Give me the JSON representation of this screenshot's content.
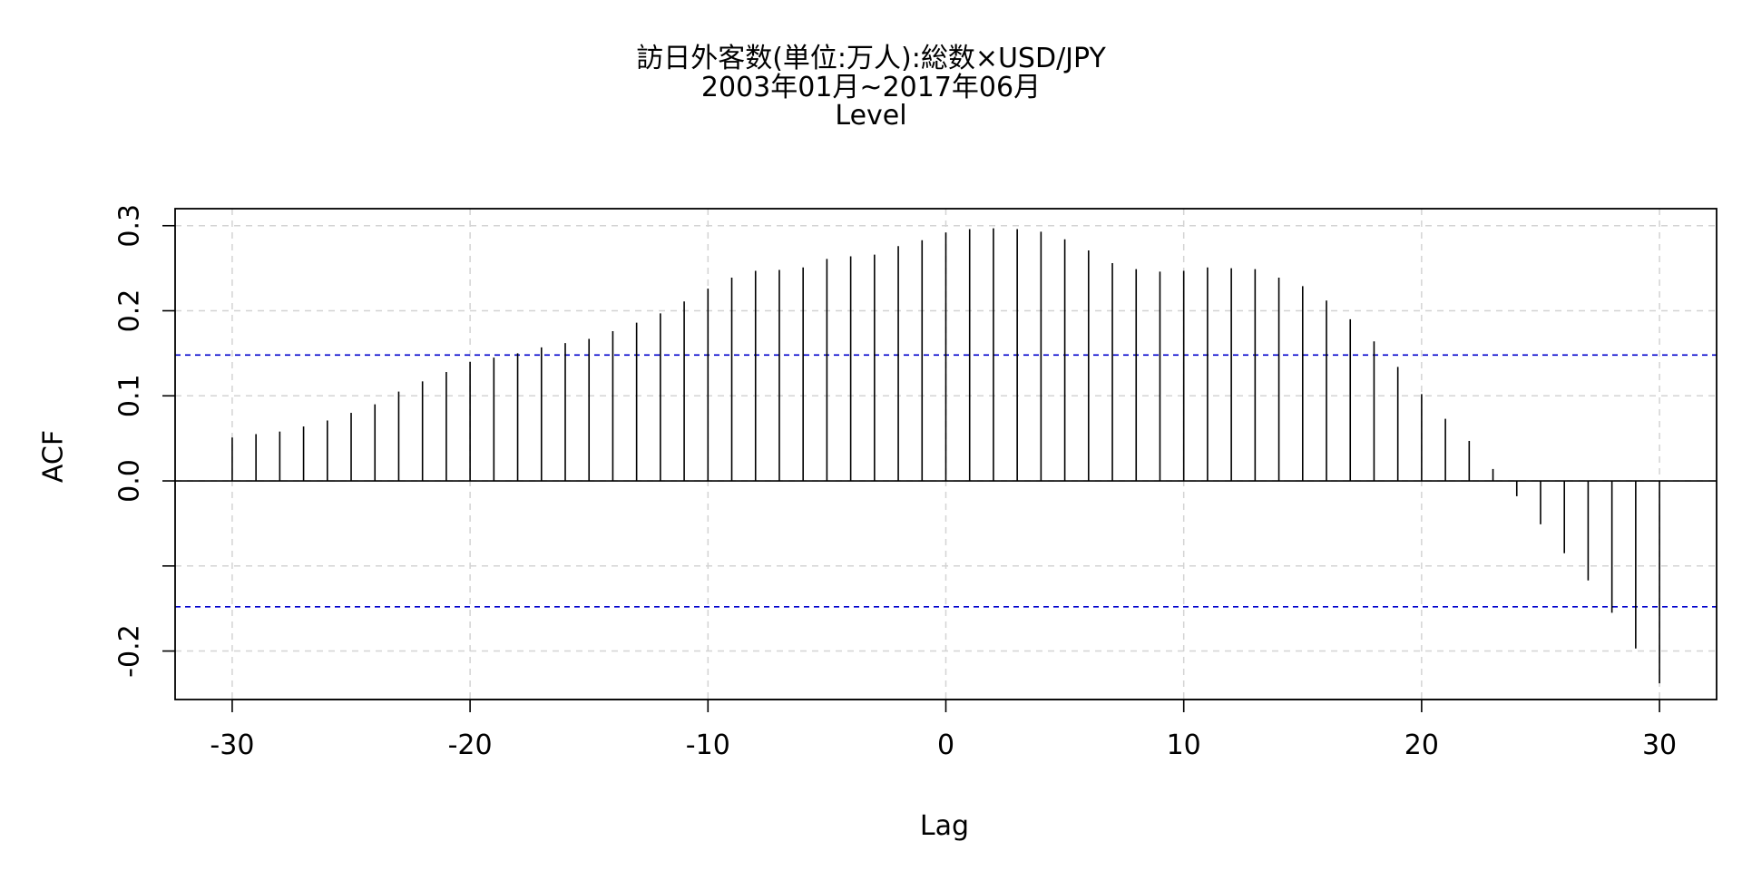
{
  "chart_data": {
    "type": "bar",
    "title_lines": [
      "訪日外客数(単位:万人):総数×USD/JPY",
      "2003年01月~2017年06月",
      "Level"
    ],
    "xlabel": "Lag",
    "ylabel": "ACF",
    "xlim": [
      -32.4,
      32.4
    ],
    "ylim": [
      -0.257,
      0.32
    ],
    "x_ticks": [
      -30,
      -20,
      -10,
      0,
      10,
      20,
      30
    ],
    "y_ticks": [
      -0.2,
      -0.1,
      0.0,
      0.1,
      0.2,
      0.3
    ],
    "y_tick_labels": [
      "-0.2",
      "",
      "0.0",
      "0.1",
      "0.2",
      "0.3"
    ],
    "grid": true,
    "confidence_bounds": [
      0.148,
      -0.148
    ],
    "x": [
      -30,
      -29,
      -28,
      -27,
      -26,
      -25,
      -24,
      -23,
      -22,
      -21,
      -20,
      -19,
      -18,
      -17,
      -16,
      -15,
      -14,
      -13,
      -12,
      -11,
      -10,
      -9,
      -8,
      -7,
      -6,
      -5,
      -4,
      -3,
      -2,
      -1,
      0,
      1,
      2,
      3,
      4,
      5,
      6,
      7,
      8,
      9,
      10,
      11,
      12,
      13,
      14,
      15,
      16,
      17,
      18,
      19,
      20,
      21,
      22,
      23,
      24,
      25,
      26,
      27,
      28,
      29,
      30
    ],
    "values": [
      0.051,
      0.055,
      0.058,
      0.064,
      0.071,
      0.08,
      0.09,
      0.105,
      0.117,
      0.128,
      0.14,
      0.145,
      0.15,
      0.157,
      0.162,
      0.167,
      0.176,
      0.186,
      0.197,
      0.211,
      0.226,
      0.239,
      0.247,
      0.248,
      0.251,
      0.261,
      0.264,
      0.266,
      0.276,
      0.283,
      0.292,
      0.296,
      0.297,
      0.296,
      0.293,
      0.284,
      0.271,
      0.256,
      0.249,
      0.246,
      0.247,
      0.251,
      0.25,
      0.249,
      0.239,
      0.229,
      0.212,
      0.19,
      0.164,
      0.134,
      0.102,
      0.073,
      0.047,
      0.014,
      -0.018,
      -0.051,
      -0.085,
      -0.117,
      -0.155,
      -0.197,
      -0.238
    ]
  },
  "colors": {
    "bar": "#000000",
    "grid": "#d3d3d3",
    "bound": "#0000cd",
    "frame": "#000000"
  }
}
